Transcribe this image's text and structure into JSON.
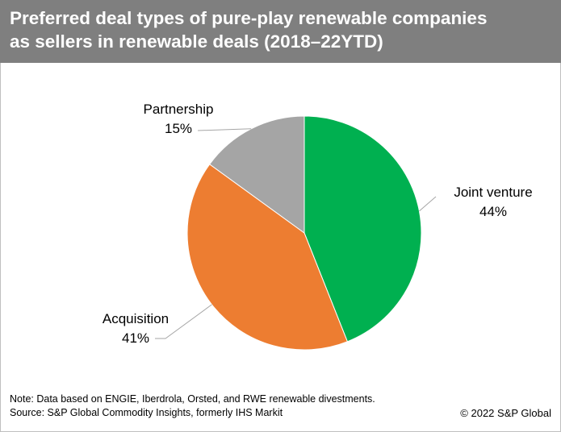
{
  "header": {
    "title_line1": "Preferred deal types of pure-play renewable companies",
    "title_line2": "as sellers in renewable deals (2018–22YTD)"
  },
  "colors": {
    "header_bg": "#7f7f7f",
    "joint_venture": "#00b050",
    "acquisition": "#ed7d31",
    "partnership": "#a5a5a5"
  },
  "chart_data": {
    "type": "pie",
    "title": "Preferred deal types of pure-play renewable companies as sellers in renewable deals (2018–22YTD)",
    "slices": [
      {
        "name": "Joint venture",
        "value": 44,
        "label": "44%",
        "color": "#00b050"
      },
      {
        "name": "Acquisition",
        "value": 41,
        "label": "41%",
        "color": "#ed7d31"
      },
      {
        "name": "Partnership",
        "value": 15,
        "label": "15%",
        "color": "#a5a5a5"
      }
    ]
  },
  "footer": {
    "note": "Note: Data based on ENGIE, Iberdrola, Orsted, and RWE renewable divestments.",
    "source": "Source: S&P Global Commodity Insights, formerly IHS Markit",
    "copyright": "© 2022 S&P Global"
  }
}
